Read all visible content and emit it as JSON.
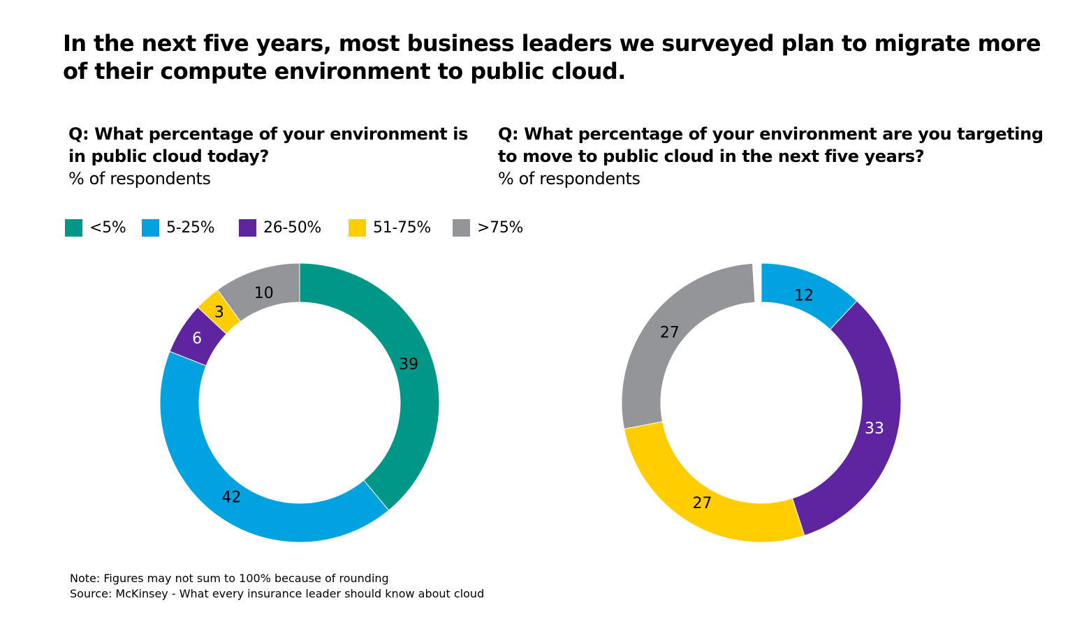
{
  "title": "In the next five years, most business leaders we surveyed plan to migrate more of their compute environment to public cloud.",
  "questions": {
    "left": {
      "q": "Q: What percentage of your environment is in public cloud today?",
      "sub": "% of respondents"
    },
    "right": {
      "q": "Q: What percentage of your environment are you targeting to move to public cloud in the next five years?",
      "sub": "% of respondents"
    }
  },
  "legend": [
    {
      "label": "<5%",
      "color": "#009688"
    },
    {
      "label": "5-25%",
      "color": "#00A3E0"
    },
    {
      "label": "26-50%",
      "color": "#5F249F"
    },
    {
      "label": "51-75%",
      "color": "#FFCD00"
    },
    {
      "label": ">75%",
      "color": "#939598"
    }
  ],
  "footer": {
    "note": "Note: Figures may not sum to 100% because of rounding",
    "source": "Source: McKinsey - What every insurance leader should know about cloud"
  },
  "chart_data": [
    {
      "type": "pie",
      "variant": "donut",
      "title": "Q: What percentage of your environment is in public cloud today?",
      "subtitle": "% of respondents",
      "categories": [
        "<5%",
        "5-25%",
        "26-50%",
        "51-75%",
        ">75%"
      ],
      "values": [
        39,
        42,
        6,
        3,
        10
      ],
      "colors": [
        "#009688",
        "#00A3E0",
        "#5F249F",
        "#FFCD00",
        "#939598"
      ],
      "label_colors": [
        "#000000",
        "#000000",
        "#ffffff",
        "#000000",
        "#000000"
      ],
      "start": "top",
      "direction": "clockwise",
      "legend": "top-left"
    },
    {
      "type": "pie",
      "variant": "donut",
      "title": "Q: What percentage of your environment are you targeting to move to public cloud in the next five years?",
      "subtitle": "% of respondents",
      "categories": [
        "5-25%",
        "26-50%",
        "51-75%",
        ">75%"
      ],
      "values": [
        12,
        33,
        27,
        27
      ],
      "colors": [
        "#00A3E0",
        "#5F249F",
        "#FFCD00",
        "#939598"
      ],
      "label_colors": [
        "#000000",
        "#ffffff",
        "#000000",
        "#000000"
      ],
      "start": "top",
      "direction": "clockwise",
      "legend": "top-left"
    }
  ]
}
